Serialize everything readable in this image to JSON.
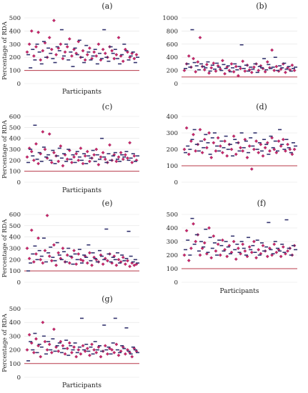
{
  "figure": {
    "panel_count": 7
  },
  "chart_data": [
    {
      "type": "scatter",
      "panel_label": "(a)",
      "xlabel": "Participants",
      "ylabel": "Percentage of RDA",
      "ylim": [
        0,
        500
      ],
      "yticks": [
        0,
        100,
        200,
        300,
        400,
        500
      ],
      "reference_line": 100,
      "series": [
        {
          "marker": "diamond",
          "color": "#c8286a",
          "values": [
            240,
            300,
            400,
            210,
            280,
            390,
            180,
            250,
            310,
            200,
            350,
            260,
            480,
            220,
            270,
            300,
            190,
            240,
            280,
            340,
            210,
            260,
            230,
            320,
            200,
            250,
            180,
            220,
            270,
            190,
            240,
            210,
            300,
            180,
            260,
            230,
            200,
            280,
            250,
            190,
            220,
            350,
            210,
            170,
            260,
            240,
            200,
            230,
            190,
            220
          ]
        },
        {
          "marker": "dash",
          "color": "#33336e",
          "values": [
            220,
            120,
            260,
            180,
            300,
            240,
            150,
            320,
            200,
            270,
            230,
            190,
            160,
            280,
            250,
            410,
            210,
            300,
            180,
            240,
            130,
            270,
            220,
            330,
            200,
            160,
            290,
            240,
            180,
            210,
            260,
            150,
            230,
            190,
            410,
            200,
            170,
            280,
            230,
            260,
            190,
            150,
            220,
            300,
            250,
            180,
            210,
            240,
            160,
            200
          ]
        }
      ]
    },
    {
      "type": "scatter",
      "panel_label": "(b)",
      "xlabel": "",
      "ylabel": "",
      "ylim": [
        0,
        1000
      ],
      "yticks": [
        0,
        200,
        400,
        600,
        800,
        1000
      ],
      "reference_line": 100,
      "series": [
        {
          "marker": "diamond",
          "color": "#c8286a",
          "values": [
            200,
            300,
            420,
            250,
            380,
            180,
            330,
            700,
            260,
            210,
            290,
            160,
            240,
            310,
            190,
            270,
            220,
            350,
            150,
            250,
            200,
            300,
            180,
            260,
            120,
            230,
            340,
            190,
            280,
            210,
            170,
            250,
            300,
            200,
            270,
            230,
            180,
            330,
            240,
            510,
            200,
            260,
            190,
            220,
            300,
            170,
            240,
            210,
            280,
            200
          ]
        },
        {
          "marker": "dash",
          "color": "#33336e",
          "values": [
            230,
            300,
            250,
            820,
            320,
            270,
            210,
            300,
            260,
            240,
            330,
            190,
            280,
            220,
            310,
            250,
            200,
            290,
            230,
            270,
            180,
            240,
            300,
            210,
            260,
            590,
            230,
            280,
            190,
            250,
            220,
            300,
            170,
            260,
            240,
            380,
            210,
            290,
            230,
            250,
            400,
            200,
            270,
            240,
            310,
            220,
            260,
            190,
            230,
            250
          ]
        }
      ]
    },
    {
      "type": "scatter",
      "panel_label": "(c)",
      "xlabel": "Participants",
      "ylabel": "Percentage of RDA",
      "ylim": [
        0,
        600
      ],
      "yticks": [
        0,
        100,
        200,
        300,
        400,
        500,
        600
      ],
      "reference_line": 100,
      "series": [
        {
          "marker": "diamond",
          "color": "#c8286a",
          "values": [
            230,
            310,
            280,
            200,
            350,
            170,
            260,
            460,
            300,
            220,
            440,
            180,
            270,
            240,
            190,
            330,
            150,
            250,
            210,
            290,
            180,
            230,
            260,
            200,
            310,
            170,
            240,
            280,
            190,
            220,
            250,
            300,
            160,
            230,
            270,
            210,
            180,
            340,
            200,
            250,
            190,
            230,
            270,
            210,
            250,
            220,
            360,
            180,
            240,
            200
          ]
        },
        {
          "marker": "dash",
          "color": "#33336e",
          "values": [
            180,
            300,
            240,
            520,
            210,
            270,
            190,
            320,
            230,
            250,
            200,
            290,
            170,
            240,
            310,
            220,
            260,
            190,
            300,
            210,
            250,
            180,
            280,
            230,
            200,
            260,
            170,
            240,
            220,
            290,
            190,
            250,
            210,
            400,
            230,
            180,
            260,
            200,
            240,
            270,
            210,
            190,
            250,
            230,
            280,
            200,
            220,
            260,
            190,
            240
          ]
        }
      ]
    },
    {
      "type": "scatter",
      "panel_label": "(d)",
      "xlabel": "",
      "ylabel": "",
      "ylim": [
        0,
        400
      ],
      "yticks": [
        0,
        100,
        200,
        300,
        400
      ],
      "reference_line": 100,
      "series": [
        {
          "marker": "diamond",
          "color": "#c8286a",
          "values": [
            200,
            330,
            170,
            250,
            290,
            190,
            230,
            320,
            180,
            260,
            210,
            300,
            150,
            240,
            190,
            270,
            220,
            180,
            250,
            160,
            230,
            200,
            280,
            170,
            240,
            210,
            190,
            260,
            150,
            220,
            80,
            200,
            250,
            180,
            230,
            160,
            210,
            240,
            190,
            270,
            200,
            180,
            250,
            220,
            260,
            190,
            230,
            200,
            170,
            200
          ]
        },
        {
          "marker": "dash",
          "color": "#33336e",
          "values": [
            180,
            220,
            200,
            260,
            320,
            230,
            190,
            250,
            210,
            290,
            240,
            170,
            270,
            300,
            220,
            190,
            250,
            210,
            280,
            200,
            230,
            160,
            260,
            240,
            190,
            300,
            210,
            250,
            180,
            270,
            220,
            300,
            200,
            240,
            190,
            260,
            230,
            170,
            280,
            210,
            250,
            190,
            320,
            230,
            200,
            260,
            210,
            180,
            240,
            220
          ]
        }
      ]
    },
    {
      "type": "scatter",
      "panel_label": "(e)",
      "xlabel": "",
      "ylabel": "Percentage of RDA",
      "ylim": [
        0,
        600
      ],
      "yticks": [
        0,
        100,
        200,
        300,
        400,
        500,
        600
      ],
      "reference_line": 100,
      "series": [
        {
          "marker": "diamond",
          "color": "#c8286a",
          "values": [
            300,
            210,
            460,
            180,
            250,
            390,
            200,
            170,
            280,
            590,
            230,
            190,
            330,
            150,
            260,
            210,
            300,
            180,
            240,
            170,
            220,
            280,
            160,
            250,
            200,
            190,
            230,
            170,
            260,
            150,
            220,
            200,
            180,
            240,
            160,
            210,
            190,
            250,
            170,
            230,
            150,
            200,
            180,
            220,
            160,
            190,
            140,
            170,
            150,
            160
          ]
        },
        {
          "marker": "dash",
          "color": "#33336e",
          "values": [
            100,
            170,
            250,
            320,
            200,
            280,
            230,
            390,
            180,
            260,
            310,
            220,
            190,
            350,
            240,
            200,
            270,
            180,
            300,
            230,
            160,
            250,
            200,
            290,
            170,
            240,
            220,
            330,
            190,
            260,
            210,
            180,
            280,
            230,
            200,
            470,
            250,
            180,
            220,
            200,
            260,
            170,
            240,
            190,
            210,
            450,
            230,
            180,
            200,
            170
          ]
        }
      ]
    },
    {
      "type": "scatter",
      "panel_label": "(f)",
      "xlabel": "Participants",
      "ylabel": "",
      "ylim": [
        0,
        500
      ],
      "yticks": [
        0,
        100,
        200,
        300,
        400,
        500
      ],
      "reference_line": 100,
      "series": [
        {
          "marker": "diamond",
          "color": "#c8286a",
          "values": [
            200,
            380,
            160,
            250,
            430,
            300,
            350,
            200,
            250,
            290,
            210,
            400,
            180,
            340,
            230,
            280,
            200,
            310,
            240,
            190,
            270,
            220,
            300,
            170,
            250,
            210,
            280,
            230,
            190,
            260,
            220,
            300,
            180,
            240,
            210,
            270,
            230,
            190,
            250,
            200,
            280,
            220,
            240,
            190,
            260,
            210,
            230,
            250,
            200,
            270
          ]
        },
        {
          "marker": "dash",
          "color": "#33336e",
          "values": [
            240,
            310,
            200,
            470,
            280,
            350,
            230,
            300,
            260,
            390,
            220,
            330,
            250,
            290,
            200,
            310,
            270,
            230,
            300,
            260,
            210,
            340,
            240,
            280,
            220,
            300,
            250,
            200,
            330,
            240,
            270,
            220,
            310,
            200,
            290,
            230,
            260,
            440,
            240,
            210,
            300,
            250,
            230,
            280,
            220,
            460,
            250,
            200,
            270,
            240
          ]
        }
      ]
    },
    {
      "type": "scatter",
      "panel_label": "(g)",
      "xlabel": "Participants",
      "ylabel": "Percentage of RDA",
      "ylim": [
        0,
        500
      ],
      "yticks": [
        0,
        100,
        200,
        300,
        400,
        500
      ],
      "reference_line": 100,
      "series": [
        {
          "marker": "diamond",
          "color": "#c8286a",
          "values": [
            200,
            310,
            250,
            180,
            280,
            230,
            150,
            400,
            260,
            200,
            240,
            180,
            350,
            220,
            190,
            260,
            230,
            170,
            210,
            250,
            180,
            220,
            150,
            200,
            170,
            230,
            190,
            210,
            160,
            240,
            200,
            180,
            220,
            150,
            190,
            230,
            170,
            210,
            200,
            180,
            240,
            160,
            190,
            220,
            170,
            200,
            180,
            150,
            210,
            190
          ]
        },
        {
          "marker": "dash",
          "color": "#33336e",
          "values": [
            120,
            260,
            200,
            320,
            180,
            240,
            220,
            300,
            170,
            260,
            200,
            280,
            190,
            230,
            250,
            180,
            210,
            270,
            160,
            230,
            200,
            250,
            180,
            220,
            430,
            200,
            240,
            190,
            220,
            170,
            260,
            200,
            230,
            190,
            380,
            200,
            220,
            170,
            250,
            430,
            200,
            180,
            230,
            210,
            360,
            190,
            170,
            220,
            200,
            180
          ]
        }
      ]
    }
  ]
}
